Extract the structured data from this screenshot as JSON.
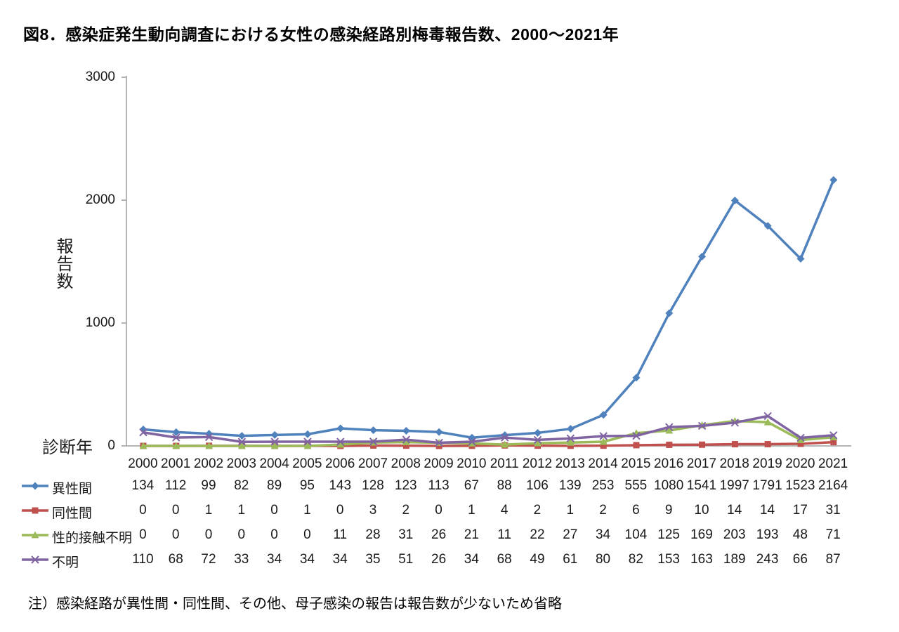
{
  "title": "図8．感染症発生動向調査における女性の感染経路別梅毒報告数、2000～2021年",
  "footnote": "注）感染経路が異性間・同性間、その他、母子感染の報告は報告数が少ないため省略",
  "colors": {
    "axis": "#9e9e9e",
    "text": "#1a1a1a",
    "series_blue": "#4F81BD",
    "series_red": "#C0504D",
    "series_green": "#9BBB59",
    "series_purple": "#8064A2"
  },
  "chart_data": {
    "type": "line",
    "title": "図8．感染症発生動向調査における女性の感染経路別梅毒報告数、2000～2021年",
    "xlabel": "診断年",
    "ylabel": "報告数",
    "x": [
      2000,
      2001,
      2002,
      2003,
      2004,
      2005,
      2006,
      2007,
      2008,
      2009,
      2010,
      2011,
      2012,
      2013,
      2014,
      2015,
      2016,
      2017,
      2018,
      2019,
      2020,
      2021
    ],
    "ylim": [
      0,
      3000
    ],
    "yticks": [
      0,
      1000,
      2000,
      3000
    ],
    "grid": false,
    "legend_position": "bottom-left-table",
    "series": [
      {
        "name": "異性間",
        "marker": "diamond",
        "color": "#4F81BD",
        "values": [
          134,
          112,
          99,
          82,
          89,
          95,
          143,
          128,
          123,
          113,
          67,
          88,
          106,
          139,
          253,
          555,
          1080,
          1541,
          1997,
          1791,
          1523,
          2164
        ]
      },
      {
        "name": "同性間",
        "marker": "square",
        "color": "#C0504D",
        "values": [
          0,
          0,
          1,
          1,
          0,
          1,
          0,
          3,
          2,
          0,
          1,
          4,
          2,
          1,
          2,
          6,
          9,
          10,
          14,
          14,
          17,
          31
        ]
      },
      {
        "name": "性的接触不明",
        "marker": "triangle",
        "color": "#9BBB59",
        "values": [
          0,
          0,
          0,
          0,
          0,
          0,
          11,
          28,
          31,
          26,
          21,
          11,
          22,
          27,
          34,
          104,
          125,
          169,
          203,
          193,
          48,
          71
        ]
      },
      {
        "name": "不明",
        "marker": "x",
        "color": "#8064A2",
        "values": [
          110,
          68,
          72,
          33,
          34,
          34,
          34,
          35,
          51,
          26,
          34,
          68,
          49,
          61,
          80,
          82,
          153,
          163,
          189,
          243,
          66,
          87
        ]
      }
    ]
  }
}
